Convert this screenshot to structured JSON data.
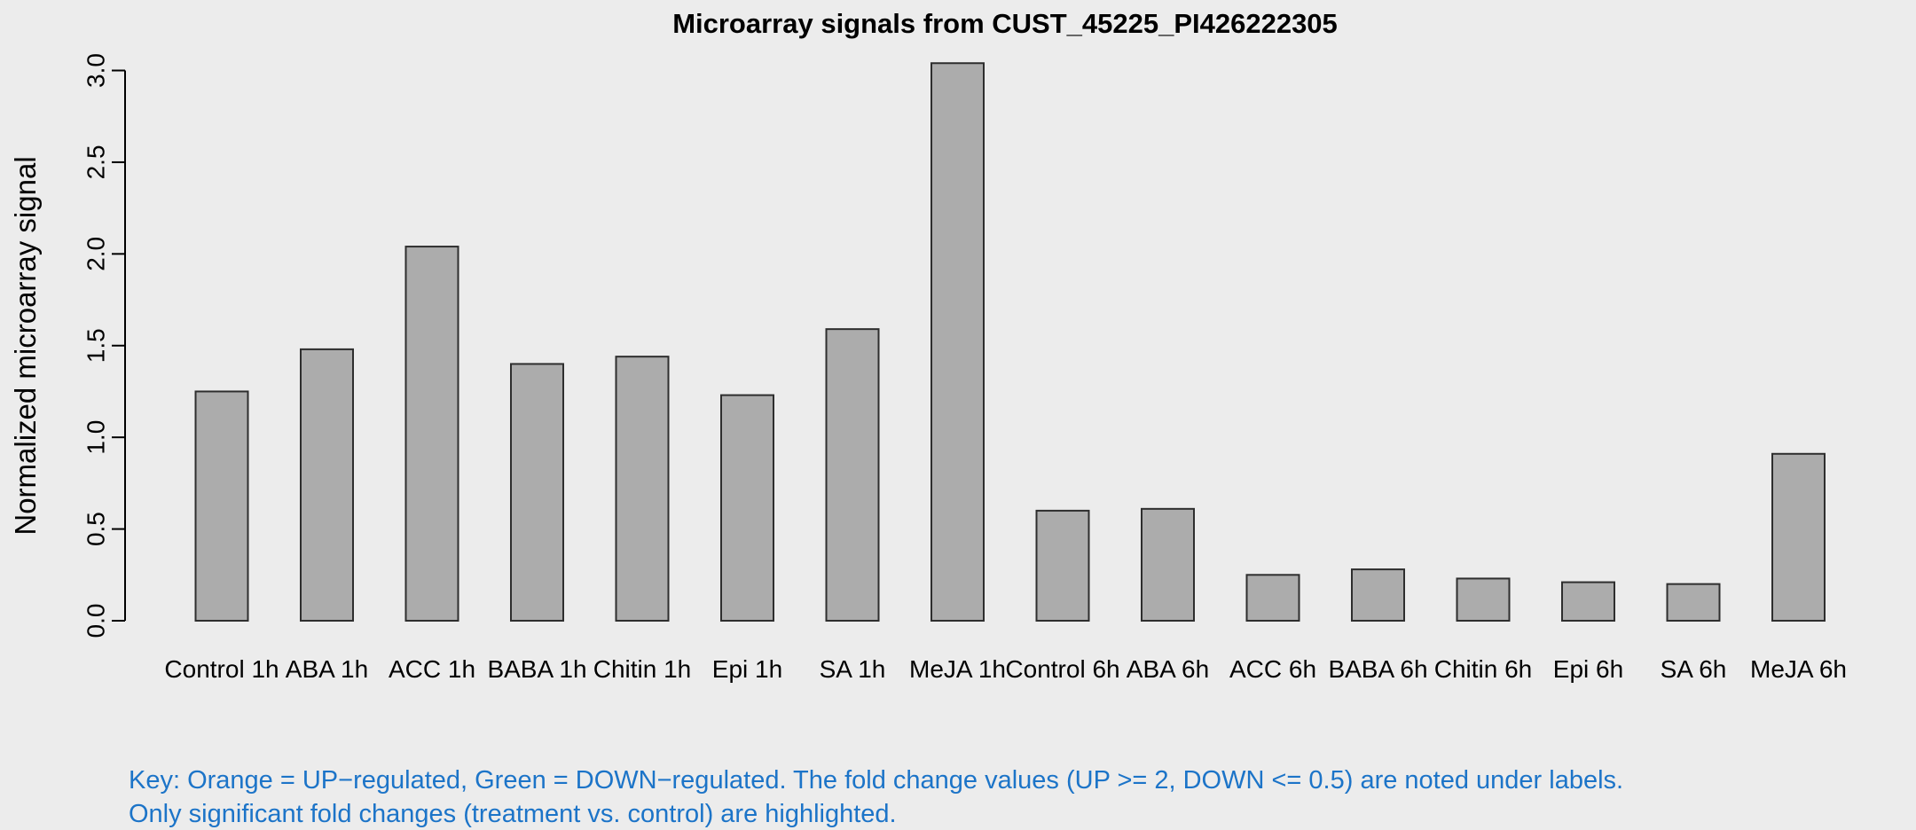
{
  "chart_data": {
    "type": "bar",
    "title": "Microarray signals from CUST_45225_PI426222305",
    "ylabel": "Normalized microarray signal",
    "xlabel": "",
    "ylim": [
      0,
      3.0
    ],
    "yticks": [
      0.0,
      0.5,
      1.0,
      1.5,
      2.0,
      2.5,
      3.0
    ],
    "ytick_labels": [
      "0.0",
      "0.5",
      "1.0",
      "1.5",
      "2.0",
      "2.5",
      "3.0"
    ],
    "grid": false,
    "legend_position": "none",
    "categories": [
      "Control 1h",
      "ABA 1h",
      "ACC 1h",
      "BABA 1h",
      "Chitin 1h",
      "Epi 1h",
      "SA 1h",
      "MeJA 1h",
      "Control 6h",
      "ABA 6h",
      "ACC 6h",
      "BABA 6h",
      "Chitin 6h",
      "Epi 6h",
      "SA 6h",
      "MeJA 6h"
    ],
    "values": [
      1.25,
      1.48,
      2.04,
      1.4,
      1.44,
      1.23,
      1.59,
      3.04,
      0.6,
      0.61,
      0.25,
      0.28,
      0.23,
      0.21,
      0.2,
      0.91
    ]
  },
  "key": {
    "line1": "Key: Orange = UP−regulated, Green = DOWN−regulated. The fold change values (UP >= 2, DOWN <= 0.5) are noted under labels.",
    "line2": "Only significant fold changes (treatment vs. control) are highlighted."
  },
  "colors": {
    "background": "#ececec",
    "bar_fill": "#acacac",
    "bar_border": "#2e2e2e",
    "axis": "#000000",
    "text": "#000000",
    "key_text": "#1c74c8"
  }
}
